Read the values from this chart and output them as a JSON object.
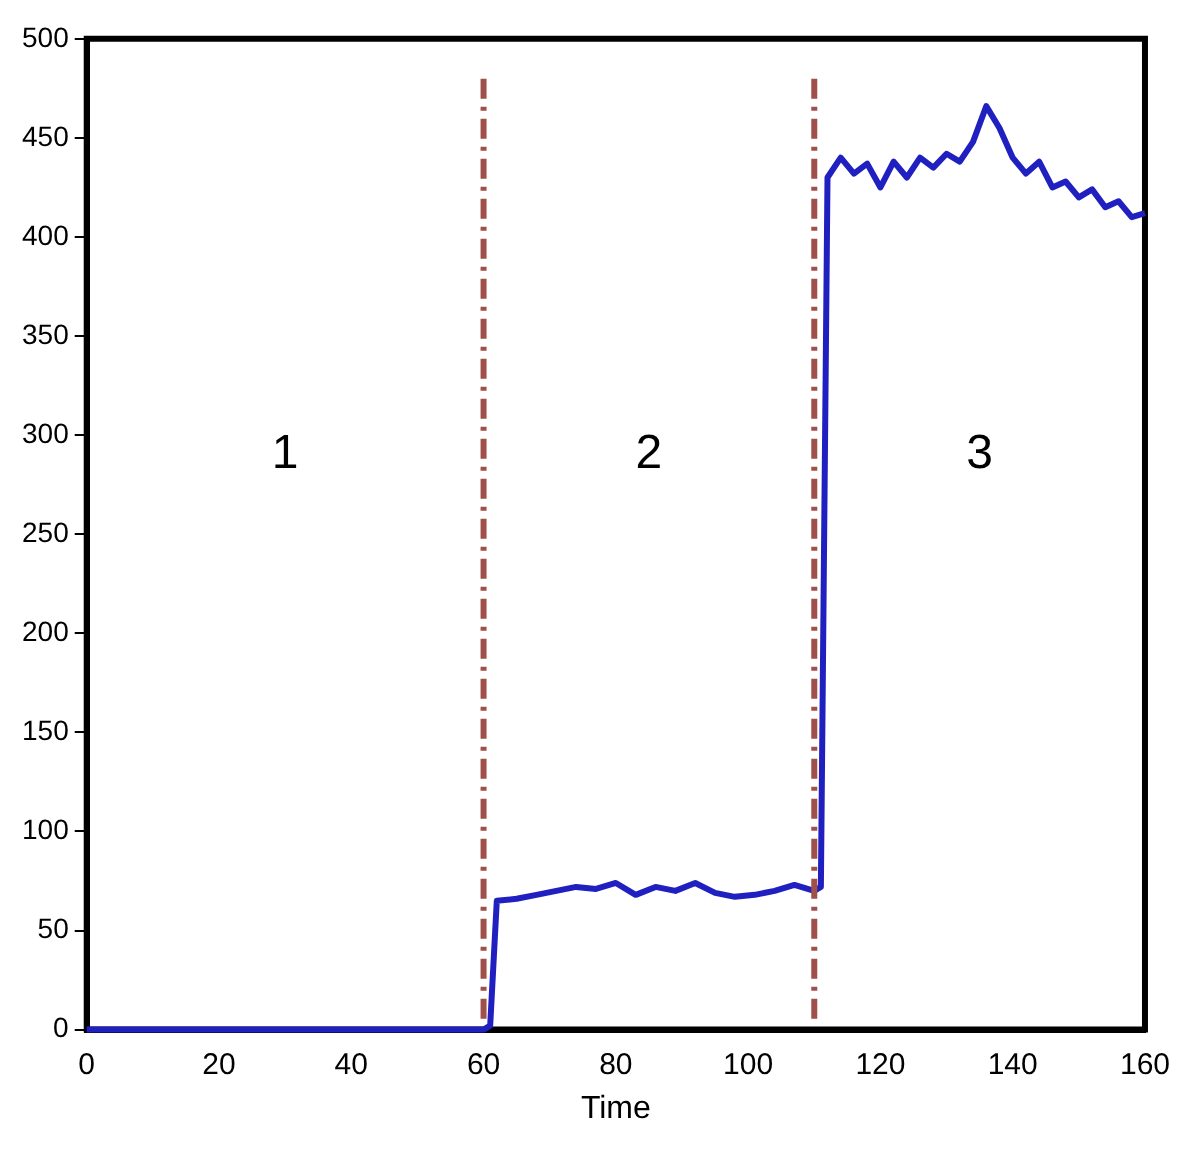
{
  "chart_data": {
    "type": "line",
    "xlabel": "Time",
    "xlim": [
      0,
      160
    ],
    "xticks": [
      0,
      20,
      40,
      60,
      80,
      100,
      120,
      140,
      160
    ],
    "ylim": [
      0,
      500
    ],
    "yticks": [
      0,
      50,
      100,
      150,
      200,
      250,
      300,
      350,
      400,
      450,
      500
    ],
    "grid": false,
    "legend": false,
    "marker": "none",
    "line_style": "solid",
    "series": [
      {
        "color": "#2020c0",
        "x": [
          0,
          5,
          10,
          15,
          20,
          25,
          30,
          35,
          40,
          45,
          50,
          55,
          60,
          61,
          62,
          65,
          68,
          71,
          74,
          77,
          80,
          83,
          86,
          89,
          92,
          95,
          98,
          101,
          104,
          107,
          110,
          111,
          112,
          114,
          116,
          118,
          120,
          122,
          124,
          126,
          128,
          130,
          132,
          134,
          136,
          138,
          140,
          142,
          144,
          146,
          148,
          150,
          152,
          154,
          156,
          158,
          160
        ],
        "values": [
          0,
          0,
          0,
          0,
          0,
          0,
          0,
          0,
          0,
          0,
          0,
          0,
          0,
          2,
          65,
          66,
          68,
          70,
          72,
          71,
          74,
          68,
          72,
          70,
          74,
          69,
          67,
          68,
          70,
          73,
          70,
          72,
          430,
          440,
          432,
          437,
          425,
          438,
          430,
          440,
          435,
          442,
          438,
          448,
          466,
          455,
          440,
          432,
          438,
          425,
          428,
          420,
          424,
          415,
          418,
          410,
          412
        ]
      }
    ],
    "ref_lines": [
      {
        "axis": "x",
        "value": 60,
        "color": "#a0504a",
        "line_style": "dashed"
      },
      {
        "axis": "x",
        "value": 110,
        "color": "#a0504a",
        "line_style": "dashed"
      }
    ],
    "annotations": [
      "1",
      "2",
      "3"
    ]
  }
}
